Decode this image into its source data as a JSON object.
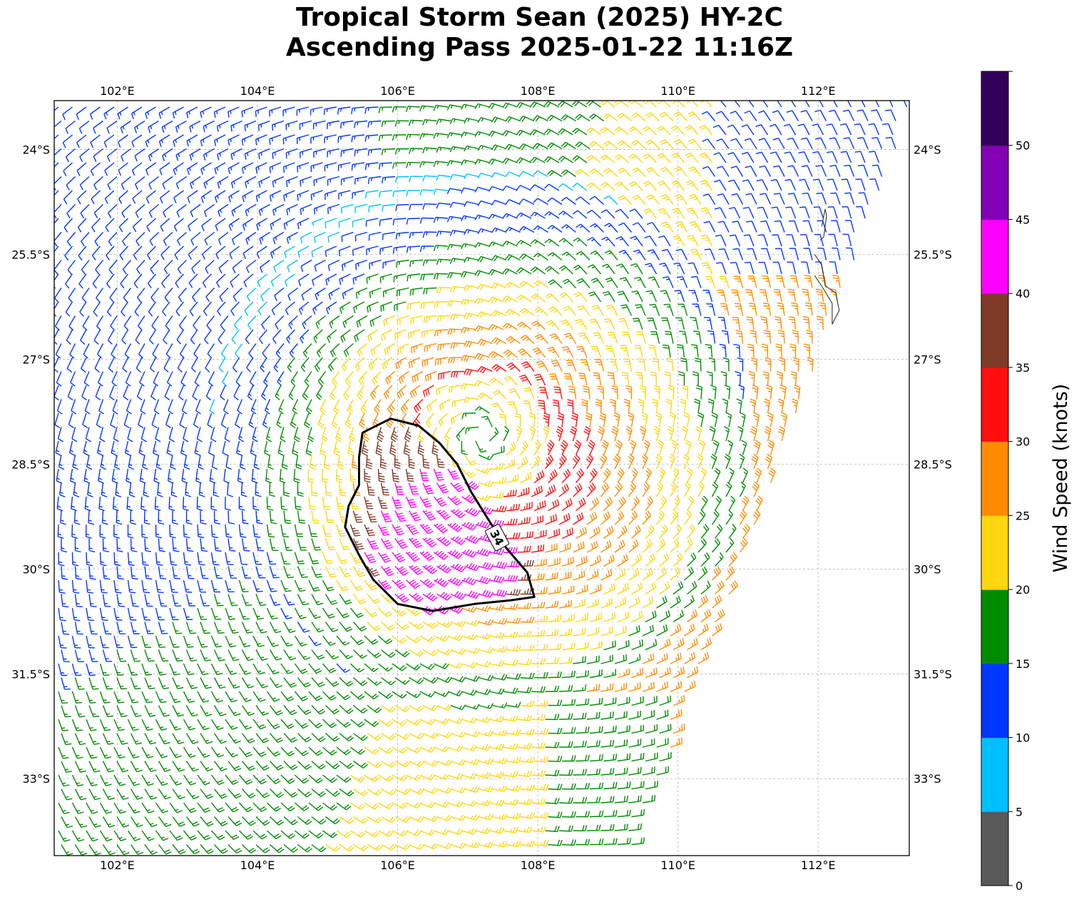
{
  "title": {
    "line1": "Tropical Storm Sean (2025) HY-2C",
    "line2": "Ascending Pass 2025-01-22 11:16Z"
  },
  "map": {
    "lon_range": [
      101.1,
      113.3
    ],
    "lat_range": [
      -34.1,
      -23.3
    ],
    "lon_ticks": [
      {
        "value": 102,
        "label": "102°E"
      },
      {
        "value": 104,
        "label": "104°E"
      },
      {
        "value": 106,
        "label": "106°E"
      },
      {
        "value": 108,
        "label": "108°E"
      },
      {
        "value": 110,
        "label": "110°E"
      },
      {
        "value": 112,
        "label": "112°E"
      }
    ],
    "lat_ticks": [
      {
        "value": -24,
        "label": "24°S"
      },
      {
        "value": -25.5,
        "label": "25.5°S"
      },
      {
        "value": -27,
        "label": "27°S"
      },
      {
        "value": -28.5,
        "label": "28.5°S"
      },
      {
        "value": -30,
        "label": "30°S"
      },
      {
        "value": -31.5,
        "label": "31.5°S"
      },
      {
        "value": -33,
        "label": "33°S"
      }
    ],
    "gridlines": true,
    "storm_center": {
      "lon": 107.2,
      "lat": -28.1
    },
    "contour_34kt": {
      "label": "34",
      "points": [
        [
          105.5,
          -28.05
        ],
        [
          105.9,
          -27.85
        ],
        [
          106.3,
          -27.95
        ],
        [
          106.6,
          -28.2
        ],
        [
          106.85,
          -28.5
        ],
        [
          107.05,
          -28.9
        ],
        [
          107.3,
          -29.3
        ],
        [
          107.55,
          -29.7
        ],
        [
          107.85,
          -30.05
        ],
        [
          107.95,
          -30.4
        ],
        [
          107.6,
          -30.45
        ],
        [
          107.1,
          -30.5
        ],
        [
          106.5,
          -30.6
        ],
        [
          106.0,
          -30.5
        ],
        [
          105.65,
          -30.15
        ],
        [
          105.45,
          -29.8
        ],
        [
          105.25,
          -29.4
        ],
        [
          105.3,
          -29.1
        ],
        [
          105.45,
          -28.8
        ],
        [
          105.45,
          -28.4
        ]
      ]
    },
    "coastline": [
      [
        [
          112.05,
          -25.1
        ],
        [
          112.1,
          -24.85
        ],
        [
          112.12,
          -24.95
        ],
        [
          112.08,
          -25.25
        ],
        [
          112.03,
          -25.3
        ]
      ],
      [
        [
          111.95,
          -25.5
        ],
        [
          112.05,
          -25.65
        ],
        [
          112.1,
          -25.95
        ],
        [
          112.25,
          -26.05
        ],
        [
          112.3,
          -26.3
        ],
        [
          112.2,
          -26.5
        ],
        [
          112.2,
          -26.2
        ],
        [
          112.08,
          -26.0
        ],
        [
          111.95,
          -25.8
        ]
      ]
    ]
  },
  "colorbar": {
    "label": "Wind Speed (knots)",
    "bins": [
      {
        "from": 0,
        "to": 5,
        "color": "#595959"
      },
      {
        "from": 5,
        "to": 10,
        "color": "#00BFFF"
      },
      {
        "from": 10,
        "to": 15,
        "color": "#0037FF"
      },
      {
        "from": 15,
        "to": 20,
        "color": "#008C00"
      },
      {
        "from": 20,
        "to": 25,
        "color": "#FFD60F"
      },
      {
        "from": 25,
        "to": 30,
        "color": "#FF8C00"
      },
      {
        "from": 30,
        "to": 35,
        "color": "#FF0F0F"
      },
      {
        "from": 35,
        "to": 40,
        "color": "#7F3B28"
      },
      {
        "from": 40,
        "to": 45,
        "color": "#FF00FF"
      },
      {
        "from": 45,
        "to": 50,
        "color": "#8400B4"
      },
      {
        "from": 50,
        "to": 55,
        "color": "#32005A"
      }
    ],
    "tick_labels": [
      "0",
      "5",
      "10",
      "15",
      "20",
      "25",
      "30",
      "35",
      "40",
      "45",
      "50"
    ]
  }
}
